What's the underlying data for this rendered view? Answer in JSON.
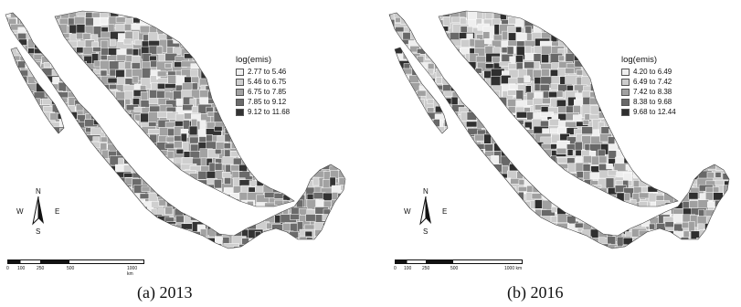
{
  "panels": [
    {
      "caption": "(a) 2013",
      "legend": {
        "title": "log(emis)",
        "classes": [
          {
            "label": "2.77 to 5.46",
            "color": "#f0f0f0"
          },
          {
            "label": "5.46 to 6.75",
            "color": "#cfcfcf"
          },
          {
            "label": "6.75 to 7.85",
            "color": "#a2a2a2"
          },
          {
            "label": "7.85 to 9.12",
            "color": "#6b6b6b"
          },
          {
            "label": "9.12 to 11.68",
            "color": "#333333"
          }
        ]
      },
      "compass": {
        "n": "N",
        "s": "S",
        "w": "W",
        "e": "E"
      },
      "scale": {
        "ticks": [
          "0",
          "100",
          "250",
          "500"
        ],
        "end": "1000 km"
      }
    },
    {
      "caption": "(b) 2016",
      "legend": {
        "title": "log(emis)",
        "classes": [
          {
            "label": "4.20 to 6.49",
            "color": "#efefef"
          },
          {
            "label": "6.49 to 7.42",
            "color": "#cccccc"
          },
          {
            "label": "7.42 to 8.38",
            "color": "#a0a0a0"
          },
          {
            "label": "8.38 to 9.68",
            "color": "#686868"
          },
          {
            "label": "9.68 to 12.44",
            "color": "#2f2f2f"
          }
        ]
      },
      "compass": {
        "n": "N",
        "s": "S",
        "w": "W",
        "e": "E"
      },
      "scale": {
        "ticks": [
          "0",
          "100",
          "250",
          "500"
        ],
        "end": "1000 km"
      }
    }
  ]
}
